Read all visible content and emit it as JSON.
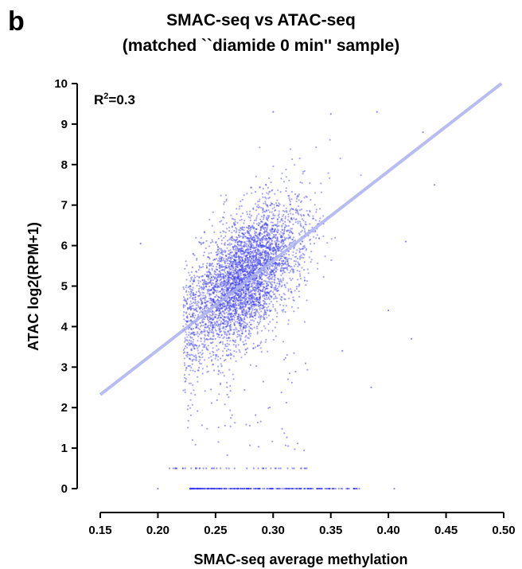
{
  "panel_label": "b",
  "colors": {
    "points": "#3b3bf0",
    "fit_line": "#aab0f0",
    "axis": "#000000"
  },
  "chart_data": {
    "type": "scatter",
    "title_line1": "SMAC-seq vs ATAC-seq",
    "title_line2": "(matched ``diamide 0 min'' sample)",
    "xlabel": "SMAC-seq average methylation",
    "ylabel": "ATAC log2(RPM+1)",
    "xlim": [
      0.15,
      0.5
    ],
    "ylim": [
      0,
      10
    ],
    "x_ticks": [
      "0.15",
      "0.20",
      "0.25",
      "0.30",
      "0.35",
      "0.40",
      "0.45",
      "0.50"
    ],
    "y_ticks": [
      "0",
      "1",
      "2",
      "3",
      "4",
      "5",
      "6",
      "7",
      "8",
      "9",
      "10"
    ],
    "annotation": {
      "prefix": "R",
      "superscript": "2",
      "suffix": "=0.3"
    },
    "fit_line": {
      "x": [
        0.15,
        0.498
      ],
      "y": [
        2.32,
        10.0
      ]
    },
    "series": [
      {
        "type": "cloud",
        "center": [
          0.275,
          5.2
        ],
        "sd_x": 0.024,
        "sd_y": 0.95,
        "correlation": 0.58,
        "count": 4200
      },
      {
        "type": "floor",
        "y": 0,
        "x_range": [
          0.228,
          0.375
        ],
        "count": 260,
        "extra_x": [
          0.2,
          0.405
        ]
      },
      {
        "type": "band",
        "y": 0.5,
        "x_range": [
          0.21,
          0.33
        ],
        "count": 45
      },
      {
        "type": "sparse",
        "x_range": [
          0.225,
          0.33
        ],
        "y_range": [
          0.8,
          3.5
        ],
        "count": 70
      },
      {
        "type": "outliers",
        "x": [
          0.185,
          0.3,
          0.35,
          0.39,
          0.415,
          0.43,
          0.44,
          0.42,
          0.385,
          0.36,
          0.4
        ],
        "y": [
          6.05,
          9.3,
          9.25,
          9.3,
          6.1,
          8.8,
          7.5,
          3.7,
          2.5,
          3.4,
          4.4
        ]
      }
    ]
  }
}
